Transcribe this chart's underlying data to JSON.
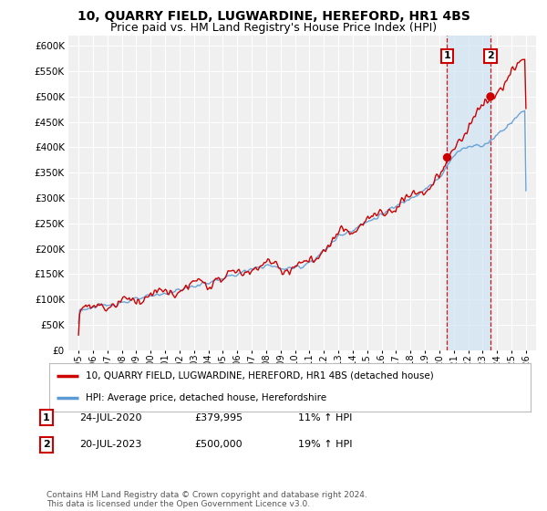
{
  "title": "10, QUARRY FIELD, LUGWARDINE, HEREFORD, HR1 4BS",
  "subtitle": "Price paid vs. HM Land Registry's House Price Index (HPI)",
  "title_fontsize": 10,
  "subtitle_fontsize": 9,
  "legend_line1": "10, QUARRY FIELD, LUGWARDINE, HEREFORD, HR1 4BS (detached house)",
  "legend_line2": "HPI: Average price, detached house, Herefordshire",
  "red_color": "#cc0000",
  "blue_color": "#5b9bd5",
  "blue_fill_color": "#d0e4f5",
  "annotation1_date": "24-JUL-2020",
  "annotation1_price": "£379,995",
  "annotation1_hpi": "11% ↑ HPI",
  "annotation2_date": "20-JUL-2023",
  "annotation2_price": "£500,000",
  "annotation2_hpi": "19% ↑ HPI",
  "footnote": "Contains HM Land Registry data © Crown copyright and database right 2024.\nThis data is licensed under the Open Government Licence v3.0.",
  "ylim": [
    0,
    620000
  ],
  "yticks": [
    0,
    50000,
    100000,
    150000,
    200000,
    250000,
    300000,
    350000,
    400000,
    450000,
    500000,
    550000,
    600000
  ],
  "background_color": "#ffffff",
  "plot_bg_color": "#f0f0f0",
  "grid_color": "#ffffff"
}
